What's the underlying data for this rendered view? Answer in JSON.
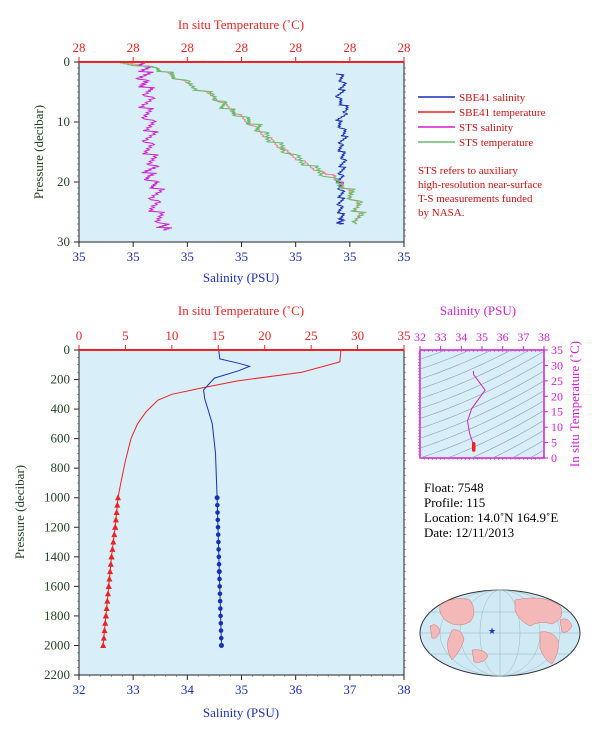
{
  "colors": {
    "plot_bg": "#d8eef8",
    "red": "#ee2222",
    "blue": "#1a2fb8",
    "magenta": "#d11fd1",
    "green": "#66bb66",
    "salmon": "#f08080",
    "axis_text": "#224422"
  },
  "top_panel": {
    "top_axis_title": "In situ Temperature (˚C)",
    "top_ticks": [
      "28",
      "28",
      "28",
      "28",
      "28",
      "28",
      "28"
    ],
    "bottom_axis_title": "Salinity (PSU)",
    "bottom_ticks": [
      "35",
      "35",
      "35",
      "35",
      "35",
      "35",
      "35"
    ],
    "y_axis_title": "Pressure (decibar)",
    "y_ticks": [
      "0",
      "10",
      "20",
      "30"
    ]
  },
  "legend": {
    "items": [
      {
        "label": "SBE41 salinity",
        "color": "#1a2fb8"
      },
      {
        "label": "SBE41 temperature",
        "color": "#ee2222"
      },
      {
        "label": "STS salinity",
        "color": "#d11fd1"
      },
      {
        "label": "STS temperature",
        "color": "#66bb66"
      }
    ],
    "note_lines": [
      "STS refers to auxiliary",
      "high-resolution near-surface",
      "T-S measurements funded",
      "by NASA."
    ]
  },
  "main_panel": {
    "top_axis_title": "In situ Temperature (˚C)",
    "top_ticks": [
      "0",
      "5",
      "10",
      "15",
      "20",
      "25",
      "30",
      "35"
    ],
    "bottom_axis_title": "Salinity (PSU)",
    "bottom_ticks": [
      "32",
      "33",
      "34",
      "35",
      "36",
      "37",
      "38"
    ],
    "y_axis_title": "Pressure (decibar)",
    "y_ticks": [
      "0",
      "200",
      "400",
      "600",
      "800",
      "1000",
      "1200",
      "1400",
      "1600",
      "1800",
      "2000",
      "2200"
    ]
  },
  "ts_panel": {
    "top_axis_title": "Salinity (PSU)",
    "top_ticks": [
      "32",
      "33",
      "34",
      "35",
      "36",
      "37",
      "38"
    ],
    "right_axis_title": "In situ Temperature (˚C)",
    "right_ticks": [
      "0",
      "5",
      "10",
      "15",
      "20",
      "25",
      "30",
      "35"
    ]
  },
  "float_info": {
    "float_line": "Float:  7548",
    "profile_line": "Profile:  115",
    "location_line": "Location:  14.0˚N  164.9˚E",
    "date_line": "Date:  12/11/2013"
  },
  "chart_data": [
    {
      "type": "line",
      "name": "near-surface",
      "ylabel": "Pressure (decibar)",
      "ylim": [
        0,
        30
      ],
      "series": [
        {
          "name": "SBE41 salinity",
          "x_axis": "salinity",
          "points": [
            [
              34.56,
              2
            ],
            [
              34.58,
              4
            ],
            [
              34.55,
              6
            ],
            [
              34.6,
              8
            ],
            [
              34.55,
              10
            ],
            [
              34.59,
              12
            ],
            [
              34.56,
              14
            ],
            [
              34.58,
              16
            ],
            [
              34.57,
              18
            ],
            [
              34.56,
              20
            ],
            [
              34.57,
              22
            ],
            [
              34.56,
              24
            ],
            [
              34.57,
              26
            ],
            [
              34.56,
              27
            ]
          ]
        },
        {
          "name": "SBE41 temperature",
          "x_axis": "temperature",
          "points": [
            [
              27.62,
              0
            ],
            [
              27.68,
              1
            ],
            [
              27.72,
              3
            ],
            [
              27.78,
              6
            ],
            [
              27.82,
              9
            ],
            [
              27.86,
              12
            ],
            [
              27.9,
              15
            ],
            [
              27.95,
              18
            ],
            [
              27.98,
              19
            ],
            [
              28.0,
              21
            ],
            [
              28.02,
              24
            ],
            [
              28.02,
              27
            ]
          ]
        },
        {
          "name": "STS salinity",
          "x_axis": "salinity",
          "points": [
            [
              33.5,
              0
            ],
            [
              33.55,
              1
            ],
            [
              33.52,
              3
            ],
            [
              33.56,
              5
            ],
            [
              33.54,
              8
            ],
            [
              33.57,
              11
            ],
            [
              33.55,
              14
            ],
            [
              33.58,
              17
            ],
            [
              33.55,
              19
            ],
            [
              33.6,
              21
            ],
            [
              33.58,
              24
            ],
            [
              33.63,
              27
            ],
            [
              33.64,
              28
            ]
          ]
        },
        {
          "name": "STS temperature",
          "x_axis": "temperature",
          "points": [
            [
              27.6,
              0
            ],
            [
              27.68,
              1
            ],
            [
              27.72,
              3
            ],
            [
              27.78,
              6
            ],
            [
              27.8,
              8
            ],
            [
              27.84,
              10
            ],
            [
              27.86,
              12
            ],
            [
              27.9,
              15
            ],
            [
              27.95,
              18
            ],
            [
              28.0,
              21
            ],
            [
              28.02,
              24
            ],
            [
              28.02,
              27
            ]
          ]
        }
      ]
    },
    {
      "type": "line",
      "name": "full-profile",
      "ylabel": "Pressure (decibar)",
      "ylim": [
        0,
        2200
      ],
      "xlim_temperature": [
        0,
        35
      ],
      "xlim_salinity": [
        32,
        38
      ],
      "series": [
        {
          "name": "SBE41 temperature",
          "x_axis": "temperature",
          "points": [
            [
              28.2,
              0
            ],
            [
              28.1,
              80
            ],
            [
              24,
              150
            ],
            [
              17,
              210
            ],
            [
              13,
              260
            ],
            [
              10,
              300
            ],
            [
              8.5,
              340
            ],
            [
              7.2,
              420
            ],
            [
              6.3,
              500
            ],
            [
              5.6,
              600
            ],
            [
              5.0,
              750
            ],
            [
              4.5,
              900
            ],
            [
              4.2,
              1000
            ],
            [
              3.9,
              1200
            ],
            [
              3.5,
              1400
            ],
            [
              3.2,
              1600
            ],
            [
              2.9,
              1800
            ],
            [
              2.6,
              2000
            ]
          ]
        },
        {
          "name": "SBE41 salinity",
          "x_axis": "salinity",
          "points": [
            [
              34.58,
              0
            ],
            [
              34.6,
              60
            ],
            [
              34.95,
              90
            ],
            [
              35.15,
              110
            ],
            [
              34.95,
              140
            ],
            [
              34.5,
              190
            ],
            [
              34.3,
              270
            ],
            [
              34.32,
              330
            ],
            [
              34.38,
              400
            ],
            [
              34.46,
              500
            ],
            [
              34.52,
              700
            ],
            [
              34.55,
              1000
            ],
            [
              34.59,
              1500
            ],
            [
              34.63,
              2000
            ]
          ]
        }
      ]
    },
    {
      "type": "line",
      "name": "t-s-diagram",
      "xlabel": "Salinity (PSU)",
      "ylabel": "In situ Temperature (˚C)",
      "xlim": [
        32,
        38
      ],
      "ylim": [
        0,
        35
      ],
      "series": [
        {
          "name": "T-S profile",
          "points": [
            [
              34.58,
              28.2
            ],
            [
              34.6,
              27
            ],
            [
              35.15,
              22
            ],
            [
              34.5,
              16
            ],
            [
              34.3,
              12
            ],
            [
              34.4,
              8
            ],
            [
              34.55,
              5
            ],
            [
              34.6,
              4
            ],
            [
              34.63,
              2.6
            ]
          ]
        }
      ]
    }
  ]
}
